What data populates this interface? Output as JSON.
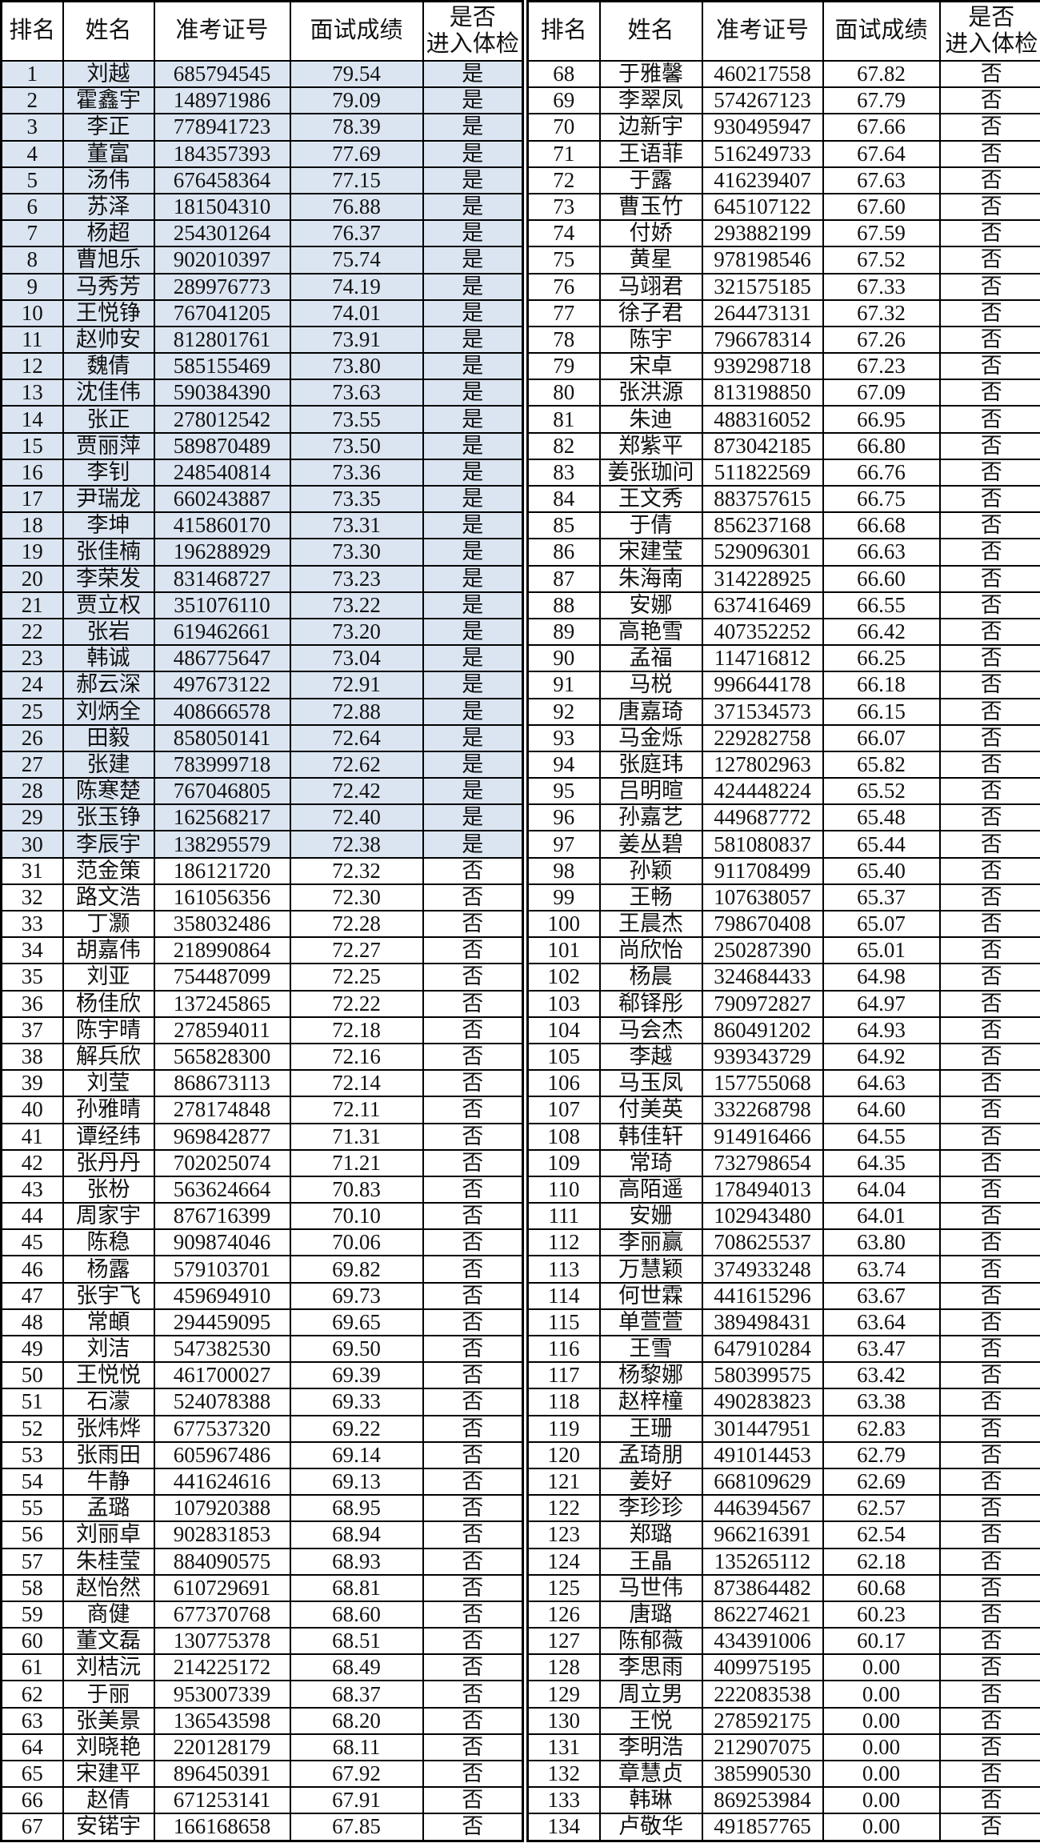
{
  "table": {
    "columns": [
      "排名",
      "姓名",
      "准考证号",
      "面试成绩",
      "是否\n进入体检"
    ],
    "pass_yes": "是",
    "pass_no": "否",
    "colors": {
      "highlight_row_bg": "#dbe5f1",
      "row_bg": "#ffffff",
      "border": "#000000",
      "text": "#111111"
    },
    "rows": [
      [
        "1",
        "刘越",
        "685794545",
        "79.54",
        "是"
      ],
      [
        "2",
        "霍鑫宇",
        "148971986",
        "79.09",
        "是"
      ],
      [
        "3",
        "李正",
        "778941723",
        "78.39",
        "是"
      ],
      [
        "4",
        "董富",
        "184357393",
        "77.69",
        "是"
      ],
      [
        "5",
        "汤伟",
        "676458364",
        "77.15",
        "是"
      ],
      [
        "6",
        "苏泽",
        "181504310",
        "76.88",
        "是"
      ],
      [
        "7",
        "杨超",
        "254301264",
        "76.37",
        "是"
      ],
      [
        "8",
        "曹旭乐",
        "902010397",
        "75.74",
        "是"
      ],
      [
        "9",
        "马秀芳",
        "289976773",
        "74.19",
        "是"
      ],
      [
        "10",
        "王悦铮",
        "767041205",
        "74.01",
        "是"
      ],
      [
        "11",
        "赵帅安",
        "812801761",
        "73.91",
        "是"
      ],
      [
        "12",
        "魏倩",
        "585155469",
        "73.80",
        "是"
      ],
      [
        "13",
        "沈佳伟",
        "590384390",
        "73.63",
        "是"
      ],
      [
        "14",
        "张正",
        "278012542",
        "73.55",
        "是"
      ],
      [
        "15",
        "贾丽萍",
        "589870489",
        "73.50",
        "是"
      ],
      [
        "16",
        "李钊",
        "248540814",
        "73.36",
        "是"
      ],
      [
        "17",
        "尹瑞龙",
        "660243887",
        "73.35",
        "是"
      ],
      [
        "18",
        "李坤",
        "415860170",
        "73.31",
        "是"
      ],
      [
        "19",
        "张佳楠",
        "196288929",
        "73.30",
        "是"
      ],
      [
        "20",
        "李荣发",
        "831468727",
        "73.23",
        "是"
      ],
      [
        "21",
        "贾立权",
        "351076110",
        "73.22",
        "是"
      ],
      [
        "22",
        "张岩",
        "619462661",
        "73.20",
        "是"
      ],
      [
        "23",
        "韩诚",
        "486775647",
        "73.04",
        "是"
      ],
      [
        "24",
        "郝云深",
        "497673122",
        "72.91",
        "是"
      ],
      [
        "25",
        "刘炳全",
        "408666578",
        "72.88",
        "是"
      ],
      [
        "26",
        "田毅",
        "858050141",
        "72.64",
        "是"
      ],
      [
        "27",
        "张建",
        "783999718",
        "72.62",
        "是"
      ],
      [
        "28",
        "陈寒楚",
        "767046805",
        "72.42",
        "是"
      ],
      [
        "29",
        "张玉铮",
        "162568217",
        "72.40",
        "是"
      ],
      [
        "30",
        "李辰宇",
        "138295579",
        "72.38",
        "是"
      ],
      [
        "31",
        "范金策",
        "186121720",
        "72.32",
        "否"
      ],
      [
        "32",
        "路文浩",
        "161056356",
        "72.30",
        "否"
      ],
      [
        "33",
        "丁灏",
        "358032486",
        "72.28",
        "否"
      ],
      [
        "34",
        "胡嘉伟",
        "218990864",
        "72.27",
        "否"
      ],
      [
        "35",
        "刘亚",
        "754487099",
        "72.25",
        "否"
      ],
      [
        "36",
        "杨佳欣",
        "137245865",
        "72.22",
        "否"
      ],
      [
        "37",
        "陈宇晴",
        "278594011",
        "72.18",
        "否"
      ],
      [
        "38",
        "解兵欣",
        "565828300",
        "72.16",
        "否"
      ],
      [
        "39",
        "刘莹",
        "868673113",
        "72.14",
        "否"
      ],
      [
        "40",
        "孙雅晴",
        "278174848",
        "72.11",
        "否"
      ],
      [
        "41",
        "谭经纬",
        "969842877",
        "71.31",
        "否"
      ],
      [
        "42",
        "张丹丹",
        "702025074",
        "71.21",
        "否"
      ],
      [
        "43",
        "张枌",
        "563624664",
        "70.83",
        "否"
      ],
      [
        "44",
        "周家宇",
        "876716399",
        "70.10",
        "否"
      ],
      [
        "45",
        "陈稳",
        "909874046",
        "70.06",
        "否"
      ],
      [
        "46",
        "杨露",
        "579103701",
        "69.82",
        "否"
      ],
      [
        "47",
        "张宇飞",
        "459694910",
        "69.73",
        "否"
      ],
      [
        "48",
        "常頔",
        "294459095",
        "69.65",
        "否"
      ],
      [
        "49",
        "刘洁",
        "547382530",
        "69.50",
        "否"
      ],
      [
        "50",
        "王悦悦",
        "461700027",
        "69.39",
        "否"
      ],
      [
        "51",
        "石濛",
        "524078388",
        "69.33",
        "否"
      ],
      [
        "52",
        "张炜烨",
        "677537320",
        "69.22",
        "否"
      ],
      [
        "53",
        "张雨田",
        "605967486",
        "69.14",
        "否"
      ],
      [
        "54",
        "牛静",
        "441624616",
        "69.13",
        "否"
      ],
      [
        "55",
        "孟璐",
        "107920388",
        "68.95",
        "否"
      ],
      [
        "56",
        "刘丽卓",
        "902831853",
        "68.94",
        "否"
      ],
      [
        "57",
        "朱桂莹",
        "884090575",
        "68.93",
        "否"
      ],
      [
        "58",
        "赵怡然",
        "610729691",
        "68.81",
        "否"
      ],
      [
        "59",
        "商健",
        "677370768",
        "68.60",
        "否"
      ],
      [
        "60",
        "董文磊",
        "130775378",
        "68.51",
        "否"
      ],
      [
        "61",
        "刘桔沅",
        "214225172",
        "68.49",
        "否"
      ],
      [
        "62",
        "于丽",
        "953007339",
        "68.37",
        "否"
      ],
      [
        "63",
        "张美景",
        "136543598",
        "68.20",
        "否"
      ],
      [
        "64",
        "刘晓艳",
        "220128179",
        "68.11",
        "否"
      ],
      [
        "65",
        "宋建平",
        "896450391",
        "67.92",
        "否"
      ],
      [
        "66",
        "赵倩",
        "671253141",
        "67.91",
        "否"
      ],
      [
        "67",
        "安锘宇",
        "166168658",
        "67.85",
        "否"
      ],
      [
        "68",
        "于雅馨",
        "460217558",
        "67.82",
        "否"
      ],
      [
        "69",
        "李翠凤",
        "574267123",
        "67.79",
        "否"
      ],
      [
        "70",
        "边新宇",
        "930495947",
        "67.66",
        "否"
      ],
      [
        "71",
        "王语菲",
        "516249733",
        "67.64",
        "否"
      ],
      [
        "72",
        "于露",
        "416239407",
        "67.63",
        "否"
      ],
      [
        "73",
        "曹玉竹",
        "645107122",
        "67.60",
        "否"
      ],
      [
        "74",
        "付娇",
        "293882199",
        "67.59",
        "否"
      ],
      [
        "75",
        "黄星",
        "978198546",
        "67.52",
        "否"
      ],
      [
        "76",
        "马翊君",
        "321575185",
        "67.33",
        "否"
      ],
      [
        "77",
        "徐子君",
        "264473131",
        "67.32",
        "否"
      ],
      [
        "78",
        "陈宇",
        "796678314",
        "67.26",
        "否"
      ],
      [
        "79",
        "宋卓",
        "939298718",
        "67.23",
        "否"
      ],
      [
        "80",
        "张洪源",
        "813198850",
        "67.09",
        "否"
      ],
      [
        "81",
        "朱迪",
        "488316052",
        "66.95",
        "否"
      ],
      [
        "82",
        "郑紫平",
        "873042185",
        "66.80",
        "否"
      ],
      [
        "83",
        "姜张珈问",
        "511822569",
        "66.76",
        "否"
      ],
      [
        "84",
        "王文秀",
        "883757615",
        "66.75",
        "否"
      ],
      [
        "85",
        "于倩",
        "856237168",
        "66.68",
        "否"
      ],
      [
        "86",
        "宋建莹",
        "529096301",
        "66.63",
        "否"
      ],
      [
        "87",
        "朱海南",
        "314228925",
        "66.60",
        "否"
      ],
      [
        "88",
        "安娜",
        "637416469",
        "66.55",
        "否"
      ],
      [
        "89",
        "高艳雪",
        "407352252",
        "66.42",
        "否"
      ],
      [
        "90",
        "孟福",
        "114716812",
        "66.25",
        "否"
      ],
      [
        "91",
        "马棁",
        "996644178",
        "66.18",
        "否"
      ],
      [
        "92",
        "唐嘉琦",
        "371534573",
        "66.15",
        "否"
      ],
      [
        "93",
        "马金烁",
        "229282758",
        "66.07",
        "否"
      ],
      [
        "94",
        "张庭玮",
        "127802963",
        "65.82",
        "否"
      ],
      [
        "95",
        "吕明暄",
        "424448224",
        "65.52",
        "否"
      ],
      [
        "96",
        "孙嘉艺",
        "449687772",
        "65.48",
        "否"
      ],
      [
        "97",
        "姜丛碧",
        "581080837",
        "65.44",
        "否"
      ],
      [
        "98",
        "孙颖",
        "911708499",
        "65.40",
        "否"
      ],
      [
        "99",
        "王畅",
        "107638057",
        "65.37",
        "否"
      ],
      [
        "100",
        "王晨杰",
        "798670408",
        "65.07",
        "否"
      ],
      [
        "101",
        "尚欣怡",
        "250287390",
        "65.01",
        "否"
      ],
      [
        "102",
        "杨晨",
        "324684433",
        "64.98",
        "否"
      ],
      [
        "103",
        "郗铎彤",
        "790972827",
        "64.97",
        "否"
      ],
      [
        "104",
        "马会杰",
        "860491202",
        "64.93",
        "否"
      ],
      [
        "105",
        "李越",
        "939343729",
        "64.92",
        "否"
      ],
      [
        "106",
        "马玉凤",
        "157755068",
        "64.63",
        "否"
      ],
      [
        "107",
        "付美英",
        "332268798",
        "64.60",
        "否"
      ],
      [
        "108",
        "韩佳轩",
        "914916466",
        "64.55",
        "否"
      ],
      [
        "109",
        "常琦",
        "732798654",
        "64.35",
        "否"
      ],
      [
        "110",
        "高陌遥",
        "178494013",
        "64.04",
        "否"
      ],
      [
        "111",
        "安姗",
        "102943480",
        "64.01",
        "否"
      ],
      [
        "112",
        "李丽赢",
        "708625537",
        "63.80",
        "否"
      ],
      [
        "113",
        "万慧颖",
        "374933248",
        "63.74",
        "否"
      ],
      [
        "114",
        "何世霖",
        "441615296",
        "63.67",
        "否"
      ],
      [
        "115",
        "单萱萱",
        "389498431",
        "63.64",
        "否"
      ],
      [
        "116",
        "王雪",
        "647910284",
        "63.47",
        "否"
      ],
      [
        "117",
        "杨黎娜",
        "580399575",
        "63.42",
        "否"
      ],
      [
        "118",
        "赵梓橦",
        "490283823",
        "63.38",
        "否"
      ],
      [
        "119",
        "王珊",
        "301447951",
        "62.83",
        "否"
      ],
      [
        "120",
        "孟琦朋",
        "491014453",
        "62.79",
        "否"
      ],
      [
        "121",
        "姜好",
        "668109629",
        "62.69",
        "否"
      ],
      [
        "122",
        "李珍珍",
        "446394567",
        "62.57",
        "否"
      ],
      [
        "123",
        "郑璐",
        "966216391",
        "62.54",
        "否"
      ],
      [
        "124",
        "王晶",
        "135265112",
        "62.18",
        "否"
      ],
      [
        "125",
        "马世伟",
        "873864482",
        "60.68",
        "否"
      ],
      [
        "126",
        "唐璐",
        "862274621",
        "60.23",
        "否"
      ],
      [
        "127",
        "陈郁薇",
        "434391006",
        "60.17",
        "否"
      ],
      [
        "128",
        "李思雨",
        "409975195",
        "0.00",
        "否"
      ],
      [
        "129",
        "周立男",
        "222083538",
        "0.00",
        "否"
      ],
      [
        "130",
        "王悦",
        "278592175",
        "0.00",
        "否"
      ],
      [
        "131",
        "李明浩",
        "212907075",
        "0.00",
        "否"
      ],
      [
        "132",
        "章慧贞",
        "385990530",
        "0.00",
        "否"
      ],
      [
        "133",
        "韩琳",
        "869253984",
        "0.00",
        "否"
      ],
      [
        "134",
        "卢敬华",
        "491857765",
        "0.00",
        "否"
      ]
    ]
  }
}
